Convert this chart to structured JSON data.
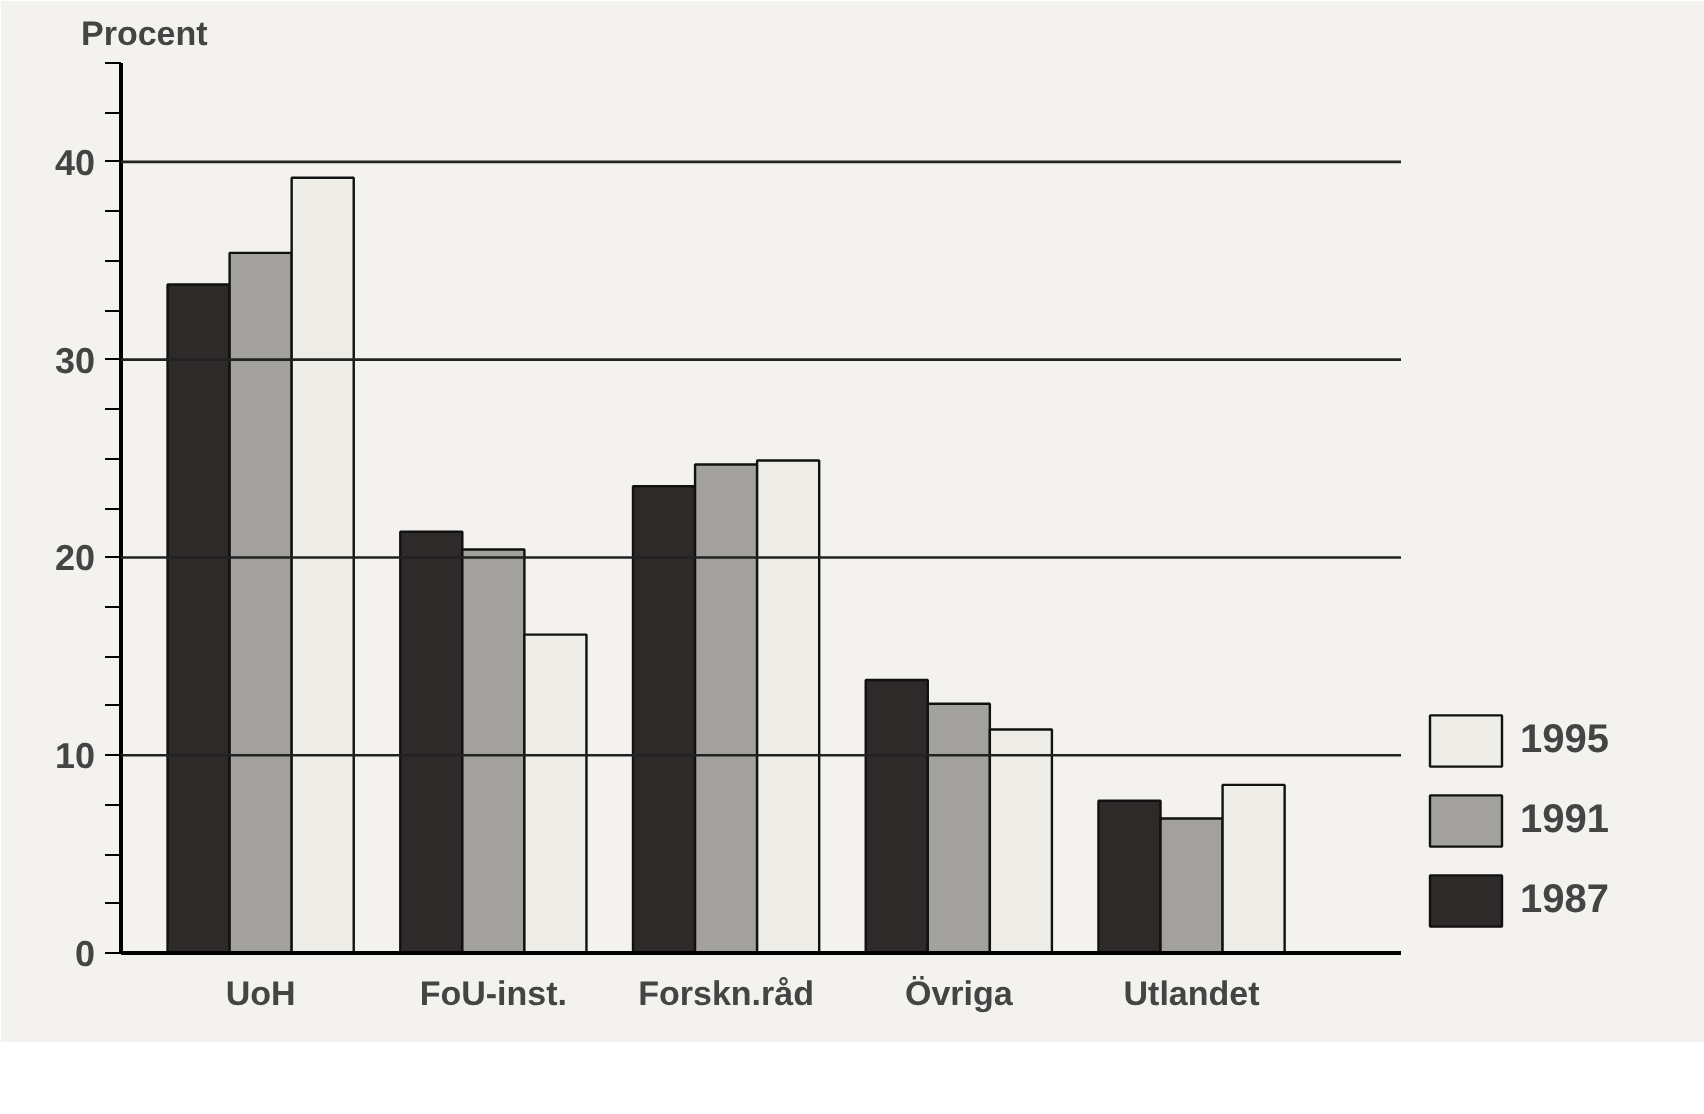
{
  "chart_data": {
    "type": "bar",
    "ylabel": "Procent",
    "categories": [
      "UoH",
      "FoU-inst.",
      "Forskn.råd",
      "Övriga",
      "Utlandet"
    ],
    "series": [
      {
        "name": "1987",
        "color": "#2e2a2a",
        "values": [
          33.8,
          21.3,
          23.6,
          13.8,
          7.7
        ]
      },
      {
        "name": "1991",
        "color": "#a3a19e",
        "values": [
          35.4,
          20.4,
          24.7,
          12.6,
          6.8
        ]
      },
      {
        "name": "1995",
        "color": "#eeede8",
        "values": [
          39.2,
          16.1,
          24.9,
          11.3,
          8.5
        ]
      }
    ],
    "ylim": [
      0,
      45
    ],
    "yticks": [
      0,
      {
        "value": 2.5,
        "label": null
      },
      {
        "value": 5,
        "label": null
      },
      {
        "value": 7.5,
        "label": null
      },
      10,
      {
        "value": 12.5,
        "label": null
      },
      {
        "value": 15,
        "label": null
      },
      {
        "value": 17.5,
        "label": null
      },
      20,
      {
        "value": 22.5,
        "label": null
      },
      {
        "value": 25,
        "label": null
      },
      {
        "value": 27.5,
        "label": null
      },
      30,
      {
        "value": 32.5,
        "label": null
      },
      {
        "value": 35,
        "label": null
      },
      {
        "value": 37.5,
        "label": null
      },
      40,
      {
        "value": 42.5,
        "label": null
      },
      {
        "value": 45,
        "label": null
      }
    ],
    "grid": "y",
    "legend": "bottom right"
  }
}
